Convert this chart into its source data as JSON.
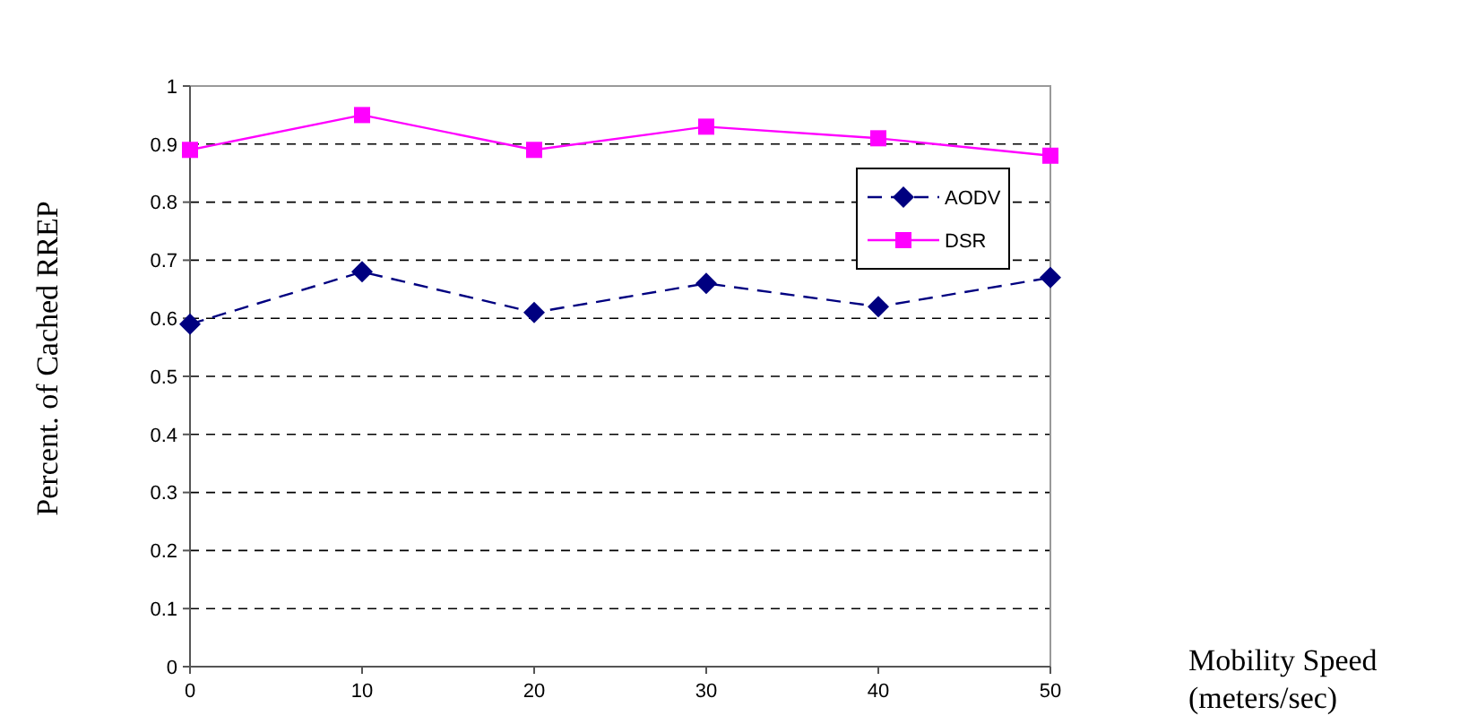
{
  "chart_data": {
    "type": "line",
    "xlabel": "Mobility Speed (meters/sec)",
    "ylabel": "Percent. of Cached RREP",
    "x": [
      0,
      10,
      20,
      30,
      40,
      50
    ],
    "series": [
      {
        "name": "AODV",
        "color": "#000080",
        "values": [
          0.59,
          0.68,
          0.61,
          0.66,
          0.62,
          0.67
        ],
        "marker": "diamond",
        "line_style": "dashed"
      },
      {
        "name": "DSR",
        "color": "#ff00ff",
        "values": [
          0.89,
          0.95,
          0.89,
          0.93,
          0.91,
          0.88
        ],
        "marker": "square",
        "line_style": "solid"
      }
    ],
    "xlim": [
      0,
      50
    ],
    "xticks": [
      0,
      10,
      20,
      30,
      40,
      50
    ],
    "ylim": [
      0,
      1
    ],
    "yticks": [
      0,
      0.1,
      0.2,
      0.3,
      0.4,
      0.5,
      0.6,
      0.7,
      0.8,
      0.9,
      1
    ],
    "grid": "y",
    "legend": "right"
  }
}
